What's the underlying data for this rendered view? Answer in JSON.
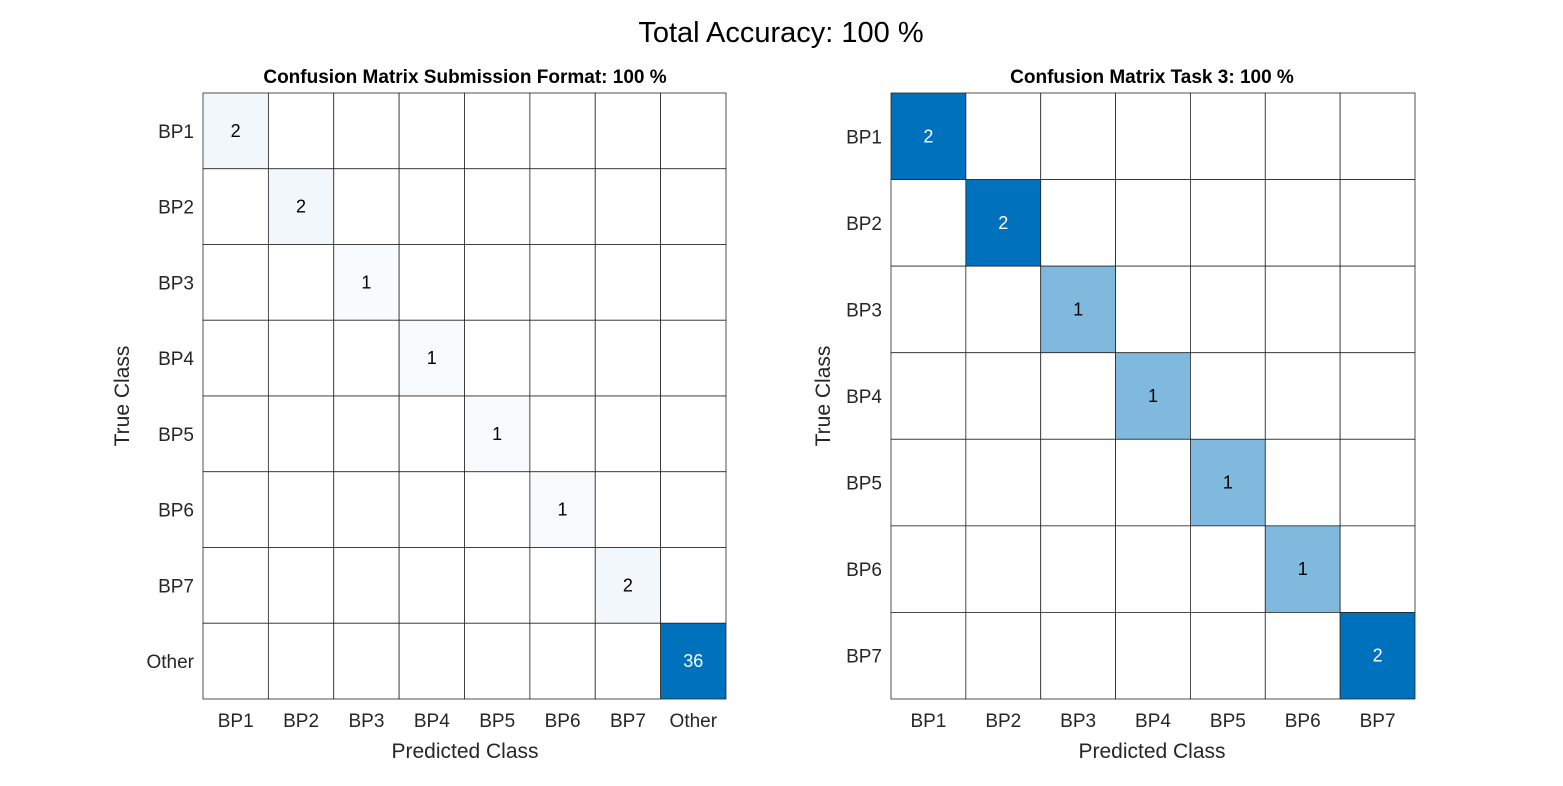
{
  "figure": {
    "title": "Total Accuracy: 100 %"
  },
  "chart_data": [
    {
      "type": "heatmap",
      "title": "Confusion Matrix Submission Format: 100 %",
      "xlabel": "Predicted Class",
      "ylabel": "True Class",
      "x_categories": [
        "BP1",
        "BP2",
        "BP3",
        "BP4",
        "BP5",
        "BP6",
        "BP7",
        "Other"
      ],
      "y_categories": [
        "BP1",
        "BP2",
        "BP3",
        "BP4",
        "BP5",
        "BP6",
        "BP7",
        "Other"
      ],
      "values": [
        [
          2,
          0,
          0,
          0,
          0,
          0,
          0,
          0
        ],
        [
          0,
          2,
          0,
          0,
          0,
          0,
          0,
          0
        ],
        [
          0,
          0,
          1,
          0,
          0,
          0,
          0,
          0
        ],
        [
          0,
          0,
          0,
          1,
          0,
          0,
          0,
          0
        ],
        [
          0,
          0,
          0,
          0,
          1,
          0,
          0,
          0
        ],
        [
          0,
          0,
          0,
          0,
          0,
          1,
          0,
          0
        ],
        [
          0,
          0,
          0,
          0,
          0,
          0,
          2,
          0
        ],
        [
          0,
          0,
          0,
          0,
          0,
          0,
          0,
          36
        ]
      ],
      "zero_values_shown": false,
      "colormap": {
        "low": "#ffffff",
        "high": "#0072bd"
      },
      "text_color_dark": "#000000",
      "text_color_light": "#ffffff"
    },
    {
      "type": "heatmap",
      "title": "Confusion Matrix Task 3: 100 %",
      "xlabel": "Predicted Class",
      "ylabel": "True Class",
      "x_categories": [
        "BP1",
        "BP2",
        "BP3",
        "BP4",
        "BP5",
        "BP6",
        "BP7"
      ],
      "y_categories": [
        "BP1",
        "BP2",
        "BP3",
        "BP4",
        "BP5",
        "BP6",
        "BP7"
      ],
      "values": [
        [
          2,
          0,
          0,
          0,
          0,
          0,
          0
        ],
        [
          0,
          2,
          0,
          0,
          0,
          0,
          0
        ],
        [
          0,
          0,
          1,
          0,
          0,
          0,
          0
        ],
        [
          0,
          0,
          0,
          1,
          0,
          0,
          0
        ],
        [
          0,
          0,
          0,
          0,
          1,
          0,
          0
        ],
        [
          0,
          0,
          0,
          0,
          0,
          1,
          0
        ],
        [
          0,
          0,
          0,
          0,
          0,
          0,
          2
        ]
      ],
      "zero_values_shown": false,
      "colormap": {
        "low": "#ffffff",
        "high": "#0072bd"
      },
      "text_color_dark": "#000000",
      "text_color_light": "#ffffff"
    }
  ]
}
